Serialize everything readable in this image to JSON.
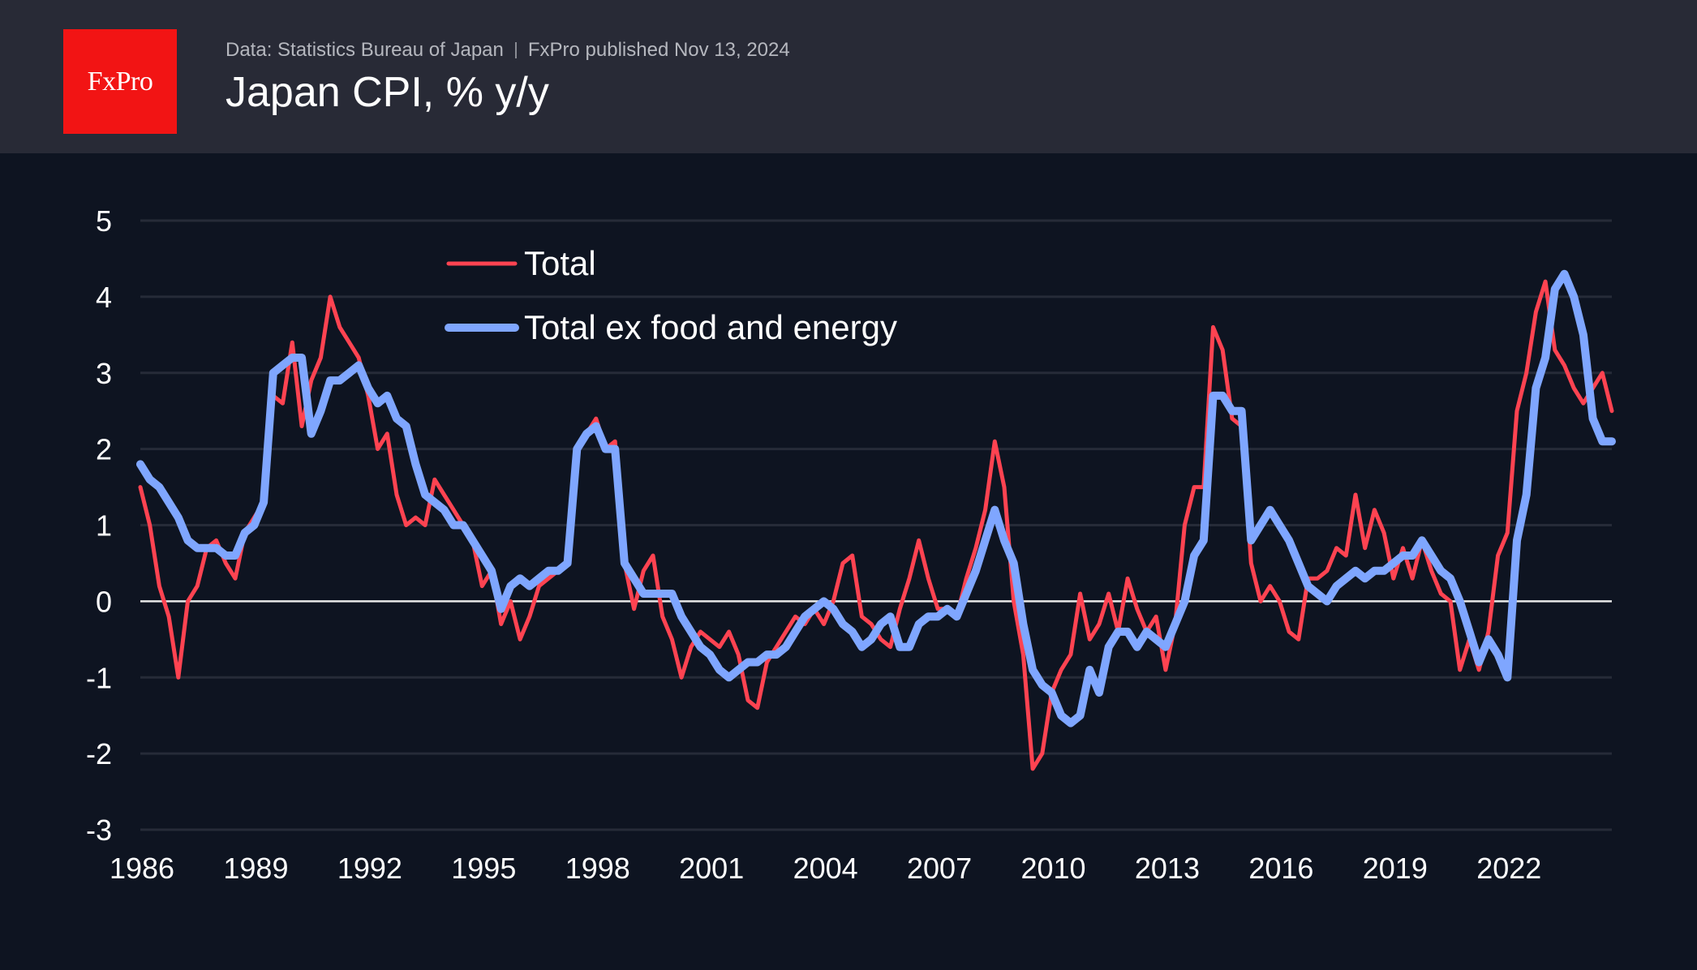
{
  "header": {
    "logo_text": "FxPro",
    "source": "Data: Statistics Bureau of Japan",
    "published": "FxPro published Nov 13, 2024",
    "title": "Japan CPI, % y/y"
  },
  "colors": {
    "total": "#ff4351",
    "core": "#7fa6ff",
    "grid": "#262b38",
    "zero": "#e8e8e8"
  },
  "chart_data": {
    "type": "line",
    "title": "Japan CPI, % y/y",
    "xlabel": "",
    "ylabel": "",
    "ylim": [
      -3,
      5
    ],
    "xlim": [
      1986.0,
      2024.75
    ],
    "yticks": [
      "5",
      "4",
      "3",
      "2",
      "1",
      "0",
      "-1",
      "-2",
      "-3"
    ],
    "ytick_values": [
      5,
      4,
      3,
      2,
      1,
      0,
      -1,
      -2,
      -3
    ],
    "xticks": [
      "1986",
      "1989",
      "1992",
      "1995",
      "1998",
      "2001",
      "2004",
      "2007",
      "2010",
      "2013",
      "2016",
      "2019",
      "2022"
    ],
    "xtick_values": [
      1986,
      1989,
      1992,
      1995,
      1998,
      2001,
      2004,
      2007,
      2010,
      2013,
      2016,
      2019,
      2022
    ],
    "grid": true,
    "legend_position": "top-left",
    "x_start": 1986.0,
    "x_step": 0.25,
    "series": [
      {
        "name": "Total",
        "values": [
          1.5,
          1.0,
          0.2,
          -0.2,
          -1.0,
          0.0,
          0.2,
          0.7,
          0.8,
          0.5,
          0.3,
          0.9,
          1.1,
          1.3,
          2.7,
          2.6,
          3.4,
          2.3,
          2.9,
          3.2,
          4.0,
          3.6,
          3.4,
          3.2,
          2.7,
          2.0,
          2.2,
          1.4,
          1.0,
          1.1,
          1.0,
          1.6,
          1.4,
          1.2,
          1.0,
          0.8,
          0.2,
          0.4,
          -0.3,
          0.0,
          -0.5,
          -0.2,
          0.2,
          0.3,
          0.4,
          0.5,
          2.0,
          2.2,
          2.4,
          2.0,
          2.1,
          0.5,
          -0.1,
          0.4,
          0.6,
          -0.2,
          -0.5,
          -1.0,
          -0.6,
          -0.4,
          -0.5,
          -0.6,
          -0.4,
          -0.7,
          -1.3,
          -1.4,
          -0.8,
          -0.6,
          -0.4,
          -0.2,
          -0.3,
          -0.1,
          -0.3,
          0.0,
          0.5,
          0.6,
          -0.2,
          -0.3,
          -0.5,
          -0.6,
          -0.1,
          0.3,
          0.8,
          0.3,
          -0.1,
          -0.1,
          -0.2,
          0.3,
          0.7,
          1.2,
          2.1,
          1.5,
          0.0,
          -0.7,
          -2.2,
          -2.0,
          -1.2,
          -0.9,
          -0.7,
          0.1,
          -0.5,
          -0.3,
          0.1,
          -0.4,
          0.3,
          -0.1,
          -0.4,
          -0.2,
          -0.9,
          -0.3,
          1.0,
          1.5,
          1.5,
          3.6,
          3.3,
          2.4,
          2.3,
          0.5,
          0.0,
          0.2,
          0.0,
          -0.4,
          -0.5,
          0.3,
          0.3,
          0.4,
          0.7,
          0.6,
          1.4,
          0.7,
          1.2,
          0.9,
          0.3,
          0.7,
          0.3,
          0.8,
          0.4,
          0.1,
          0.0,
          -0.9,
          -0.5,
          -0.9,
          -0.4,
          0.6,
          0.9,
          2.5,
          3.0,
          3.8,
          4.2,
          3.3,
          3.1,
          2.8,
          2.6,
          2.8,
          3.0,
          2.5
        ]
      },
      {
        "name": "Total ex food and energy",
        "values": [
          1.8,
          1.6,
          1.5,
          1.3,
          1.1,
          0.8,
          0.7,
          0.7,
          0.7,
          0.6,
          0.6,
          0.9,
          1.0,
          1.3,
          3.0,
          3.1,
          3.2,
          3.2,
          2.2,
          2.5,
          2.9,
          2.9,
          3.0,
          3.1,
          2.8,
          2.6,
          2.7,
          2.4,
          2.3,
          1.8,
          1.4,
          1.3,
          1.2,
          1.0,
          1.0,
          0.8,
          0.6,
          0.4,
          -0.1,
          0.2,
          0.3,
          0.2,
          0.3,
          0.4,
          0.4,
          0.5,
          2.0,
          2.2,
          2.3,
          2.0,
          2.0,
          0.5,
          0.3,
          0.1,
          0.1,
          0.1,
          0.1,
          -0.2,
          -0.4,
          -0.6,
          -0.7,
          -0.9,
          -1.0,
          -0.9,
          -0.8,
          -0.8,
          -0.7,
          -0.7,
          -0.6,
          -0.4,
          -0.2,
          -0.1,
          0.0,
          -0.1,
          -0.3,
          -0.4,
          -0.6,
          -0.5,
          -0.3,
          -0.2,
          -0.6,
          -0.6,
          -0.3,
          -0.2,
          -0.2,
          -0.1,
          -0.2,
          0.1,
          0.4,
          0.8,
          1.2,
          0.8,
          0.5,
          -0.3,
          -0.9,
          -1.1,
          -1.2,
          -1.5,
          -1.6,
          -1.5,
          -0.9,
          -1.2,
          -0.6,
          -0.4,
          -0.4,
          -0.6,
          -0.4,
          -0.5,
          -0.6,
          -0.3,
          0.0,
          0.6,
          0.8,
          2.7,
          2.7,
          2.5,
          2.5,
          0.8,
          1.0,
          1.2,
          1.0,
          0.8,
          0.5,
          0.2,
          0.1,
          0.0,
          0.2,
          0.3,
          0.4,
          0.3,
          0.4,
          0.4,
          0.5,
          0.6,
          0.6,
          0.8,
          0.6,
          0.4,
          0.3,
          0.0,
          -0.4,
          -0.8,
          -0.5,
          -0.7,
          -1.0,
          0.8,
          1.4,
          2.8,
          3.2,
          4.1,
          4.3,
          4.0,
          3.5,
          2.4,
          2.1,
          2.1
        ]
      }
    ]
  }
}
